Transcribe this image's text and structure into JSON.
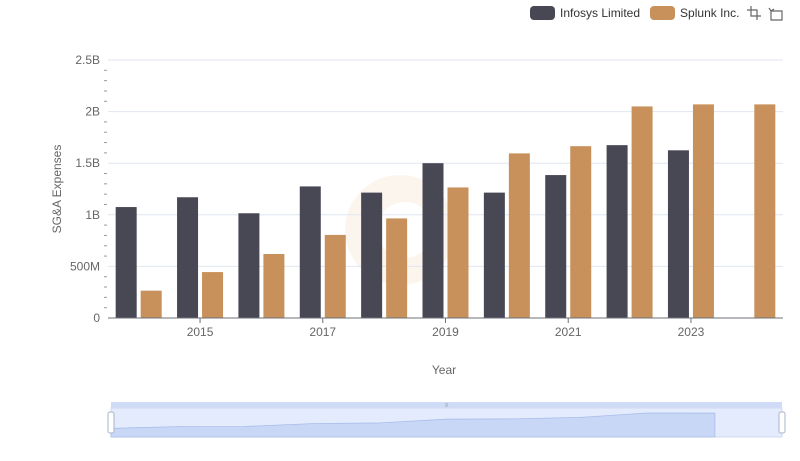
{
  "legend": {
    "items": [
      {
        "label": "Infosys Limited",
        "color": "#484855"
      },
      {
        "label": "Splunk Inc.",
        "color": "#c8915b"
      }
    ]
  },
  "toolbox": {
    "icons": [
      "zoom-icon",
      "zoom-reset-icon"
    ]
  },
  "chart_data": {
    "type": "bar",
    "xlabel": "Year",
    "ylabel": "SG&A Expenses",
    "categories": [
      "2014",
      "2015",
      "2016",
      "2017",
      "2018",
      "2019",
      "2020",
      "2021",
      "2022",
      "2023",
      "2024"
    ],
    "x_tick_labels": [
      "2015",
      "2017",
      "2019",
      "2021",
      "2023"
    ],
    "y_tick_labels": [
      "0",
      "500M",
      "1B",
      "1.5B",
      "2B",
      "2.5B"
    ],
    "ylim": [
      0,
      2500000000
    ],
    "grid": true,
    "legend_position": "top-right",
    "series": [
      {
        "name": "Infosys Limited",
        "color": "#484855",
        "values": [
          1075000000,
          1170000000,
          1015000000,
          1275000000,
          1215000000,
          1500000000,
          1215000000,
          1385000000,
          1675000000,
          1625000000,
          null
        ]
      },
      {
        "name": "Splunk Inc.",
        "color": "#c8915b",
        "values": [
          265000000,
          445000000,
          620000000,
          805000000,
          965000000,
          1265000000,
          1595000000,
          1665000000,
          2050000000,
          2070000000,
          2070000000
        ]
      }
    ],
    "datazoom": {
      "start": 0,
      "end": 100
    }
  }
}
